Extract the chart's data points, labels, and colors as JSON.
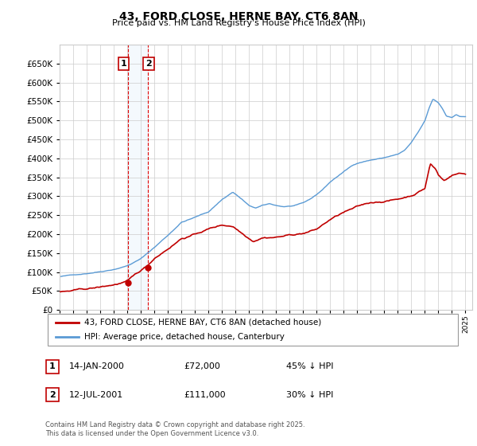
{
  "title": "43, FORD CLOSE, HERNE BAY, CT6 8AN",
  "subtitle": "Price paid vs. HM Land Registry's House Price Index (HPI)",
  "legend_line1": "43, FORD CLOSE, HERNE BAY, CT6 8AN (detached house)",
  "legend_line2": "HPI: Average price, detached house, Canterbury",
  "transaction1_date": "14-JAN-2000",
  "transaction1_price": "£72,000",
  "transaction1_hpi": "45% ↓ HPI",
  "transaction2_date": "12-JUL-2001",
  "transaction2_price": "£111,000",
  "transaction2_hpi": "30% ↓ HPI",
  "footer": "Contains HM Land Registry data © Crown copyright and database right 2025.\nThis data is licensed under the Open Government Licence v3.0.",
  "hpi_color": "#5b9bd5",
  "price_color": "#c00000",
  "vline_color": "#e00000",
  "grid_color": "#cccccc",
  "ylim_max": 700000,
  "ytick_step": 50000,
  "xmin": 1995,
  "xmax": 2025,
  "t1_time": 2000.04,
  "t2_time": 2001.54,
  "t1_price": 72000,
  "t2_price": 111000,
  "hpi_anchors_t": [
    1995.0,
    1996.0,
    1997.0,
    1998.0,
    1999.0,
    2000.0,
    2001.0,
    2002.0,
    2003.0,
    2004.0,
    2005.0,
    2006.0,
    2007.0,
    2007.8,
    2008.5,
    2009.0,
    2009.5,
    2010.0,
    2010.5,
    2011.0,
    2011.5,
    2012.0,
    2012.5,
    2013.0,
    2013.5,
    2014.0,
    2014.5,
    2015.0,
    2015.5,
    2016.0,
    2016.5,
    2017.0,
    2017.5,
    2018.0,
    2018.5,
    2019.0,
    2019.5,
    2020.0,
    2020.5,
    2021.0,
    2021.5,
    2022.0,
    2022.3,
    2022.6,
    2023.0,
    2023.3,
    2023.6,
    2024.0,
    2024.3,
    2024.6,
    2025.0
  ],
  "hpi_anchors_v": [
    88000,
    92000,
    97000,
    103000,
    110000,
    120000,
    138000,
    168000,
    200000,
    235000,
    248000,
    262000,
    295000,
    315000,
    295000,
    278000,
    272000,
    278000,
    282000,
    278000,
    275000,
    276000,
    278000,
    283000,
    292000,
    305000,
    320000,
    338000,
    352000,
    365000,
    378000,
    388000,
    393000,
    397000,
    400000,
    403000,
    408000,
    412000,
    422000,
    442000,
    468000,
    498000,
    530000,
    555000,
    545000,
    530000,
    510000,
    508000,
    515000,
    510000,
    510000
  ],
  "red_anchors_t": [
    1995.0,
    1996.0,
    1997.0,
    1998.0,
    1999.0,
    2000.04,
    2001.54,
    2002.0,
    2003.0,
    2004.0,
    2005.0,
    2006.0,
    2007.0,
    2007.8,
    2008.5,
    2009.3,
    2010.0,
    2011.0,
    2012.0,
    2013.0,
    2014.0,
    2015.0,
    2016.0,
    2017.0,
    2018.0,
    2019.0,
    2020.0,
    2021.0,
    2022.0,
    2022.4,
    2022.8,
    2023.0,
    2023.4,
    2024.0,
    2024.5,
    2025.0
  ],
  "red_anchors_v": [
    48000,
    50000,
    53000,
    57000,
    63000,
    72000,
    111000,
    130000,
    157000,
    185000,
    196000,
    210000,
    220000,
    218000,
    200000,
    182000,
    193000,
    195000,
    200000,
    205000,
    215000,
    240000,
    258000,
    270000,
    280000,
    285000,
    290000,
    300000,
    320000,
    385000,
    370000,
    355000,
    340000,
    355000,
    360000,
    358000
  ]
}
